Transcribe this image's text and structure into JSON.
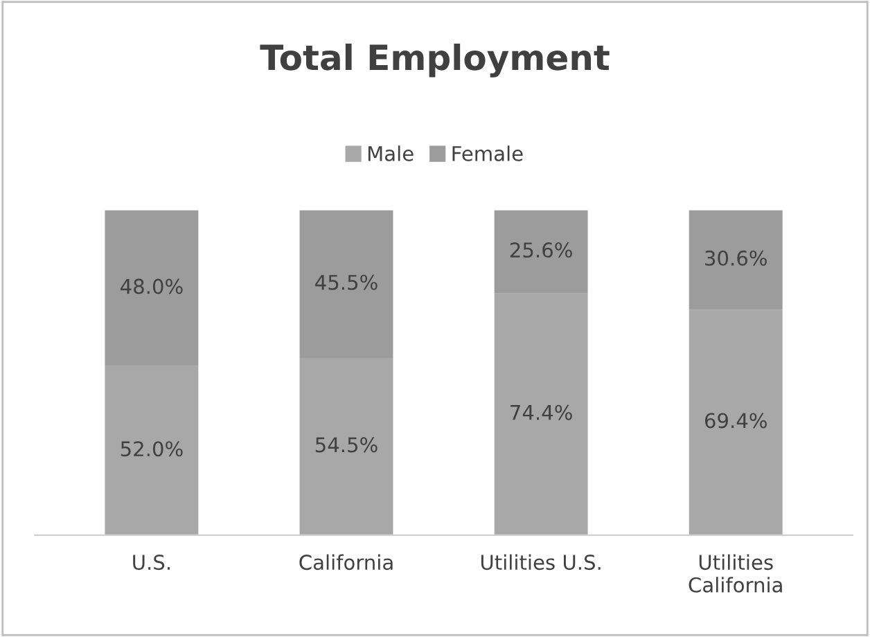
{
  "chart_data": {
    "type": "bar",
    "title": "Total Employment",
    "stacked": true,
    "legend": "top",
    "categories": [
      "U.S.",
      "California",
      "Utilities U.S.",
      "Utilities\nCalifornia"
    ],
    "series": [
      {
        "name": "Male",
        "color": "#a8a8a8",
        "values": [
          52.0,
          54.5,
          74.4,
          69.4
        ],
        "value_labels": [
          "52.0%",
          "54.5%",
          "74.4%",
          "69.4%"
        ]
      },
      {
        "name": "Female",
        "color": "#9c9c9c",
        "values": [
          48.0,
          45.5,
          25.6,
          30.6
        ],
        "value_labels": [
          "48.0%",
          "45.5%",
          "25.6%",
          "30.6%"
        ]
      }
    ]
  }
}
